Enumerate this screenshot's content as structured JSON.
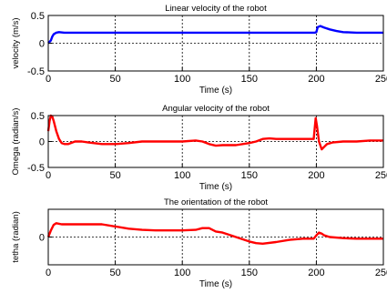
{
  "chart_data": [
    {
      "type": "line",
      "title": "Linear velocity of the robot",
      "xlabel": "Time (s)",
      "ylabel": "velocity (m/s)",
      "xlim": [
        0,
        250
      ],
      "ylim": [
        -0.5,
        0.5
      ],
      "xticks": [
        0,
        50,
        100,
        150,
        200,
        250
      ],
      "yticks": [
        -0.5,
        0,
        0.5
      ],
      "xticklabels": [
        "0",
        "50",
        "100",
        "150",
        "200",
        "250"
      ],
      "yticklabels": [
        "-0.5",
        "0",
        "0.5"
      ],
      "grid": true,
      "series": [
        {
          "color": "#0000ff",
          "x": [
            0,
            2,
            3,
            4,
            6,
            8,
            12,
            20,
            50,
            100,
            150,
            199,
            200,
            201,
            203,
            206,
            210,
            215,
            220,
            230,
            250
          ],
          "y": [
            0,
            0.05,
            0.12,
            0.16,
            0.19,
            0.2,
            0.19,
            0.19,
            0.19,
            0.19,
            0.19,
            0.19,
            0.2,
            0.29,
            0.31,
            0.28,
            0.25,
            0.22,
            0.2,
            0.19,
            0.19
          ]
        }
      ]
    },
    {
      "type": "line",
      "title": "Angular velocity of the robot",
      "xlabel": "Time (s)",
      "ylabel": "Omega (radian/s)",
      "xlim": [
        0,
        250
      ],
      "ylim": [
        -0.5,
        0.5
      ],
      "xticks": [
        0,
        50,
        100,
        150,
        200,
        250
      ],
      "yticks": [
        -0.5,
        0,
        0.5
      ],
      "xticklabels": [
        "0",
        "50",
        "100",
        "150",
        "200",
        "250"
      ],
      "yticklabels": [
        "-0.5",
        "0",
        "0.5"
      ],
      "grid": true,
      "series": [
        {
          "color": "#ff0000",
          "x": [
            0,
            1,
            2,
            3,
            4,
            6,
            8,
            10,
            12,
            15,
            20,
            25,
            30,
            40,
            50,
            60,
            70,
            80,
            90,
            100,
            110,
            115,
            120,
            125,
            130,
            140,
            150,
            155,
            160,
            165,
            170,
            180,
            190,
            198,
            199.5,
            200.5,
            202,
            204,
            206,
            208,
            212,
            220,
            230,
            240,
            250
          ],
          "y": [
            0.2,
            0.4,
            0.5,
            0.48,
            0.4,
            0.2,
            0.05,
            -0.03,
            -0.05,
            -0.05,
            0.0,
            0.0,
            -0.02,
            -0.05,
            -0.05,
            -0.03,
            0.0,
            0.0,
            0.0,
            0.0,
            0.02,
            0.0,
            -0.05,
            -0.08,
            -0.07,
            -0.07,
            -0.03,
            0.0,
            0.05,
            0.06,
            0.05,
            0.05,
            0.05,
            0.05,
            0.45,
            0.3,
            0.0,
            -0.15,
            -0.1,
            -0.05,
            -0.02,
            0.0,
            0.0,
            0.02,
            0.02
          ]
        }
      ]
    },
    {
      "type": "line",
      "title": "The orientation of the robot",
      "xlabel": "Time (s)",
      "ylabel": "tetha (radian)",
      "xlim": [
        0,
        250
      ],
      "ylim": [
        -5,
        5
      ],
      "xticks": [
        0,
        50,
        100,
        150,
        200,
        250
      ],
      "yticks": [
        0
      ],
      "xticklabels": [
        "0",
        "50",
        "100",
        "150",
        "200",
        "250"
      ],
      "yticklabels": [
        "0"
      ],
      "grid": true,
      "series": [
        {
          "color": "#ff0000",
          "x": [
            0,
            2,
            4,
            6,
            8,
            10,
            20,
            30,
            40,
            50,
            60,
            70,
            80,
            90,
            100,
            110,
            115,
            120,
            125,
            130,
            140,
            150,
            155,
            160,
            170,
            180,
            190,
            198,
            200,
            202,
            204,
            206,
            210,
            220,
            230,
            240,
            250
          ],
          "y": [
            0,
            1.2,
            2.2,
            2.5,
            2.4,
            2.3,
            2.3,
            2.3,
            2.3,
            1.9,
            1.5,
            1.3,
            1.2,
            1.2,
            1.2,
            1.3,
            1.6,
            1.6,
            1.0,
            0.8,
            0.0,
            -0.8,
            -1.1,
            -1.2,
            -0.9,
            -0.5,
            -0.3,
            -0.3,
            0.3,
            0.8,
            0.6,
            0.3,
            0.0,
            -0.2,
            -0.3,
            -0.3,
            -0.3
          ]
        }
      ]
    }
  ]
}
